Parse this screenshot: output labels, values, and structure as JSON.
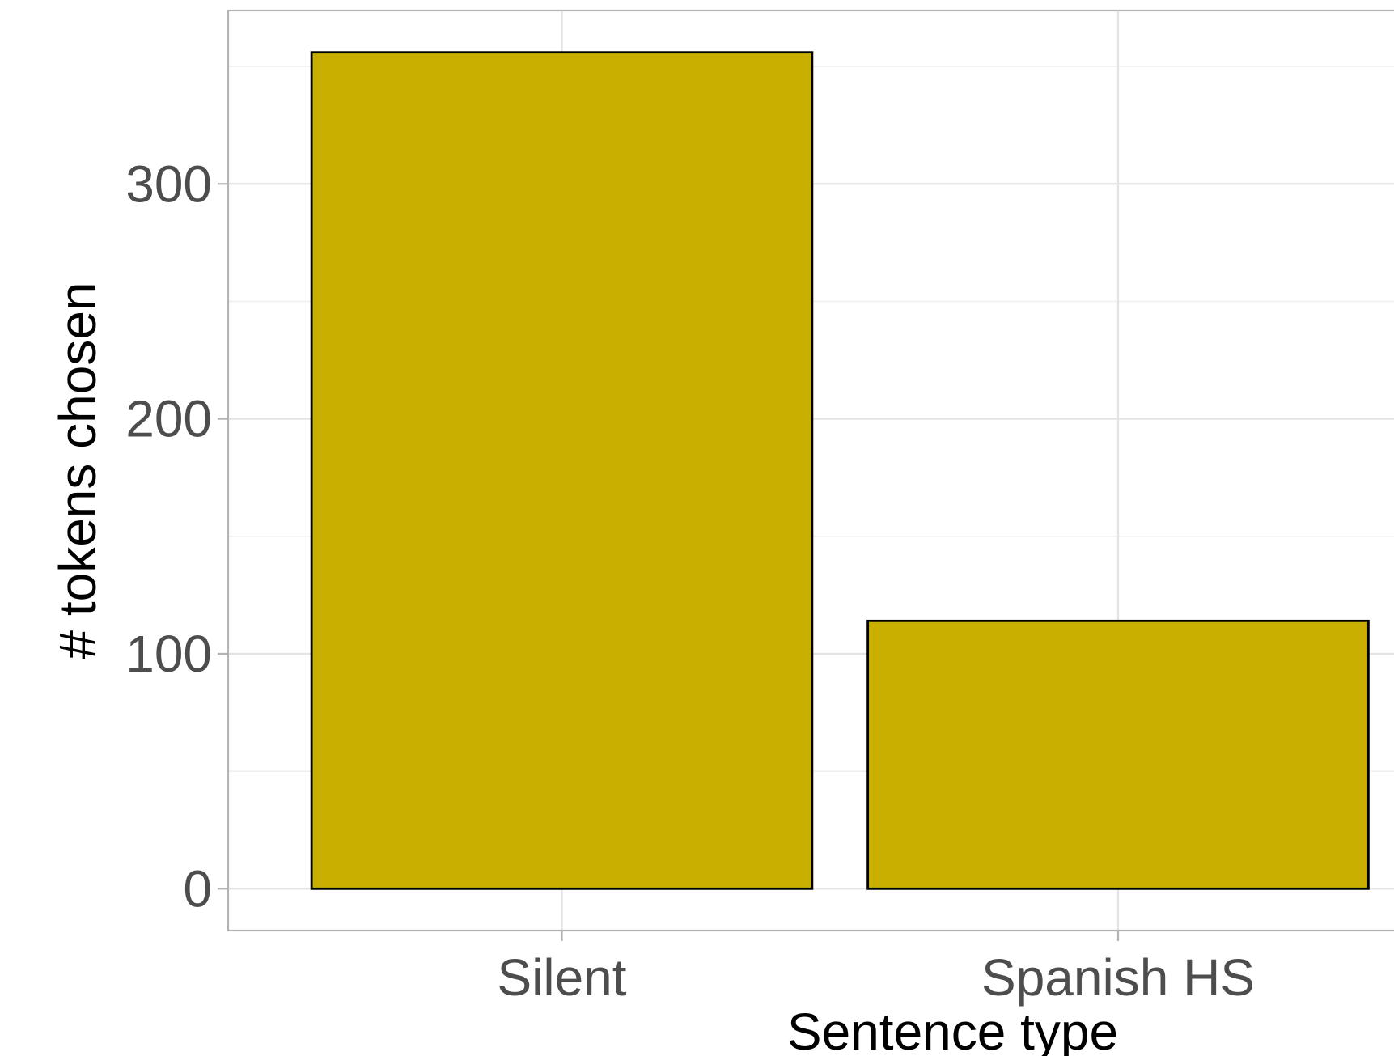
{
  "chart_data": {
    "type": "bar",
    "categories": [
      "Silent",
      "Spanish HS"
    ],
    "values": [
      356,
      114
    ],
    "title": "",
    "xlabel": "Sentence type",
    "ylabel": "# tokens chosen",
    "ylim": [
      -17.8,
      373.8
    ],
    "yticks": [
      0,
      100,
      200,
      300
    ],
    "grid": true,
    "legend": "none",
    "colors": {
      "bar_fill": "#c9af00",
      "bar_stroke": "#000000",
      "panel_border": "#b3b3b3",
      "grid": "#e3e3e3"
    }
  }
}
